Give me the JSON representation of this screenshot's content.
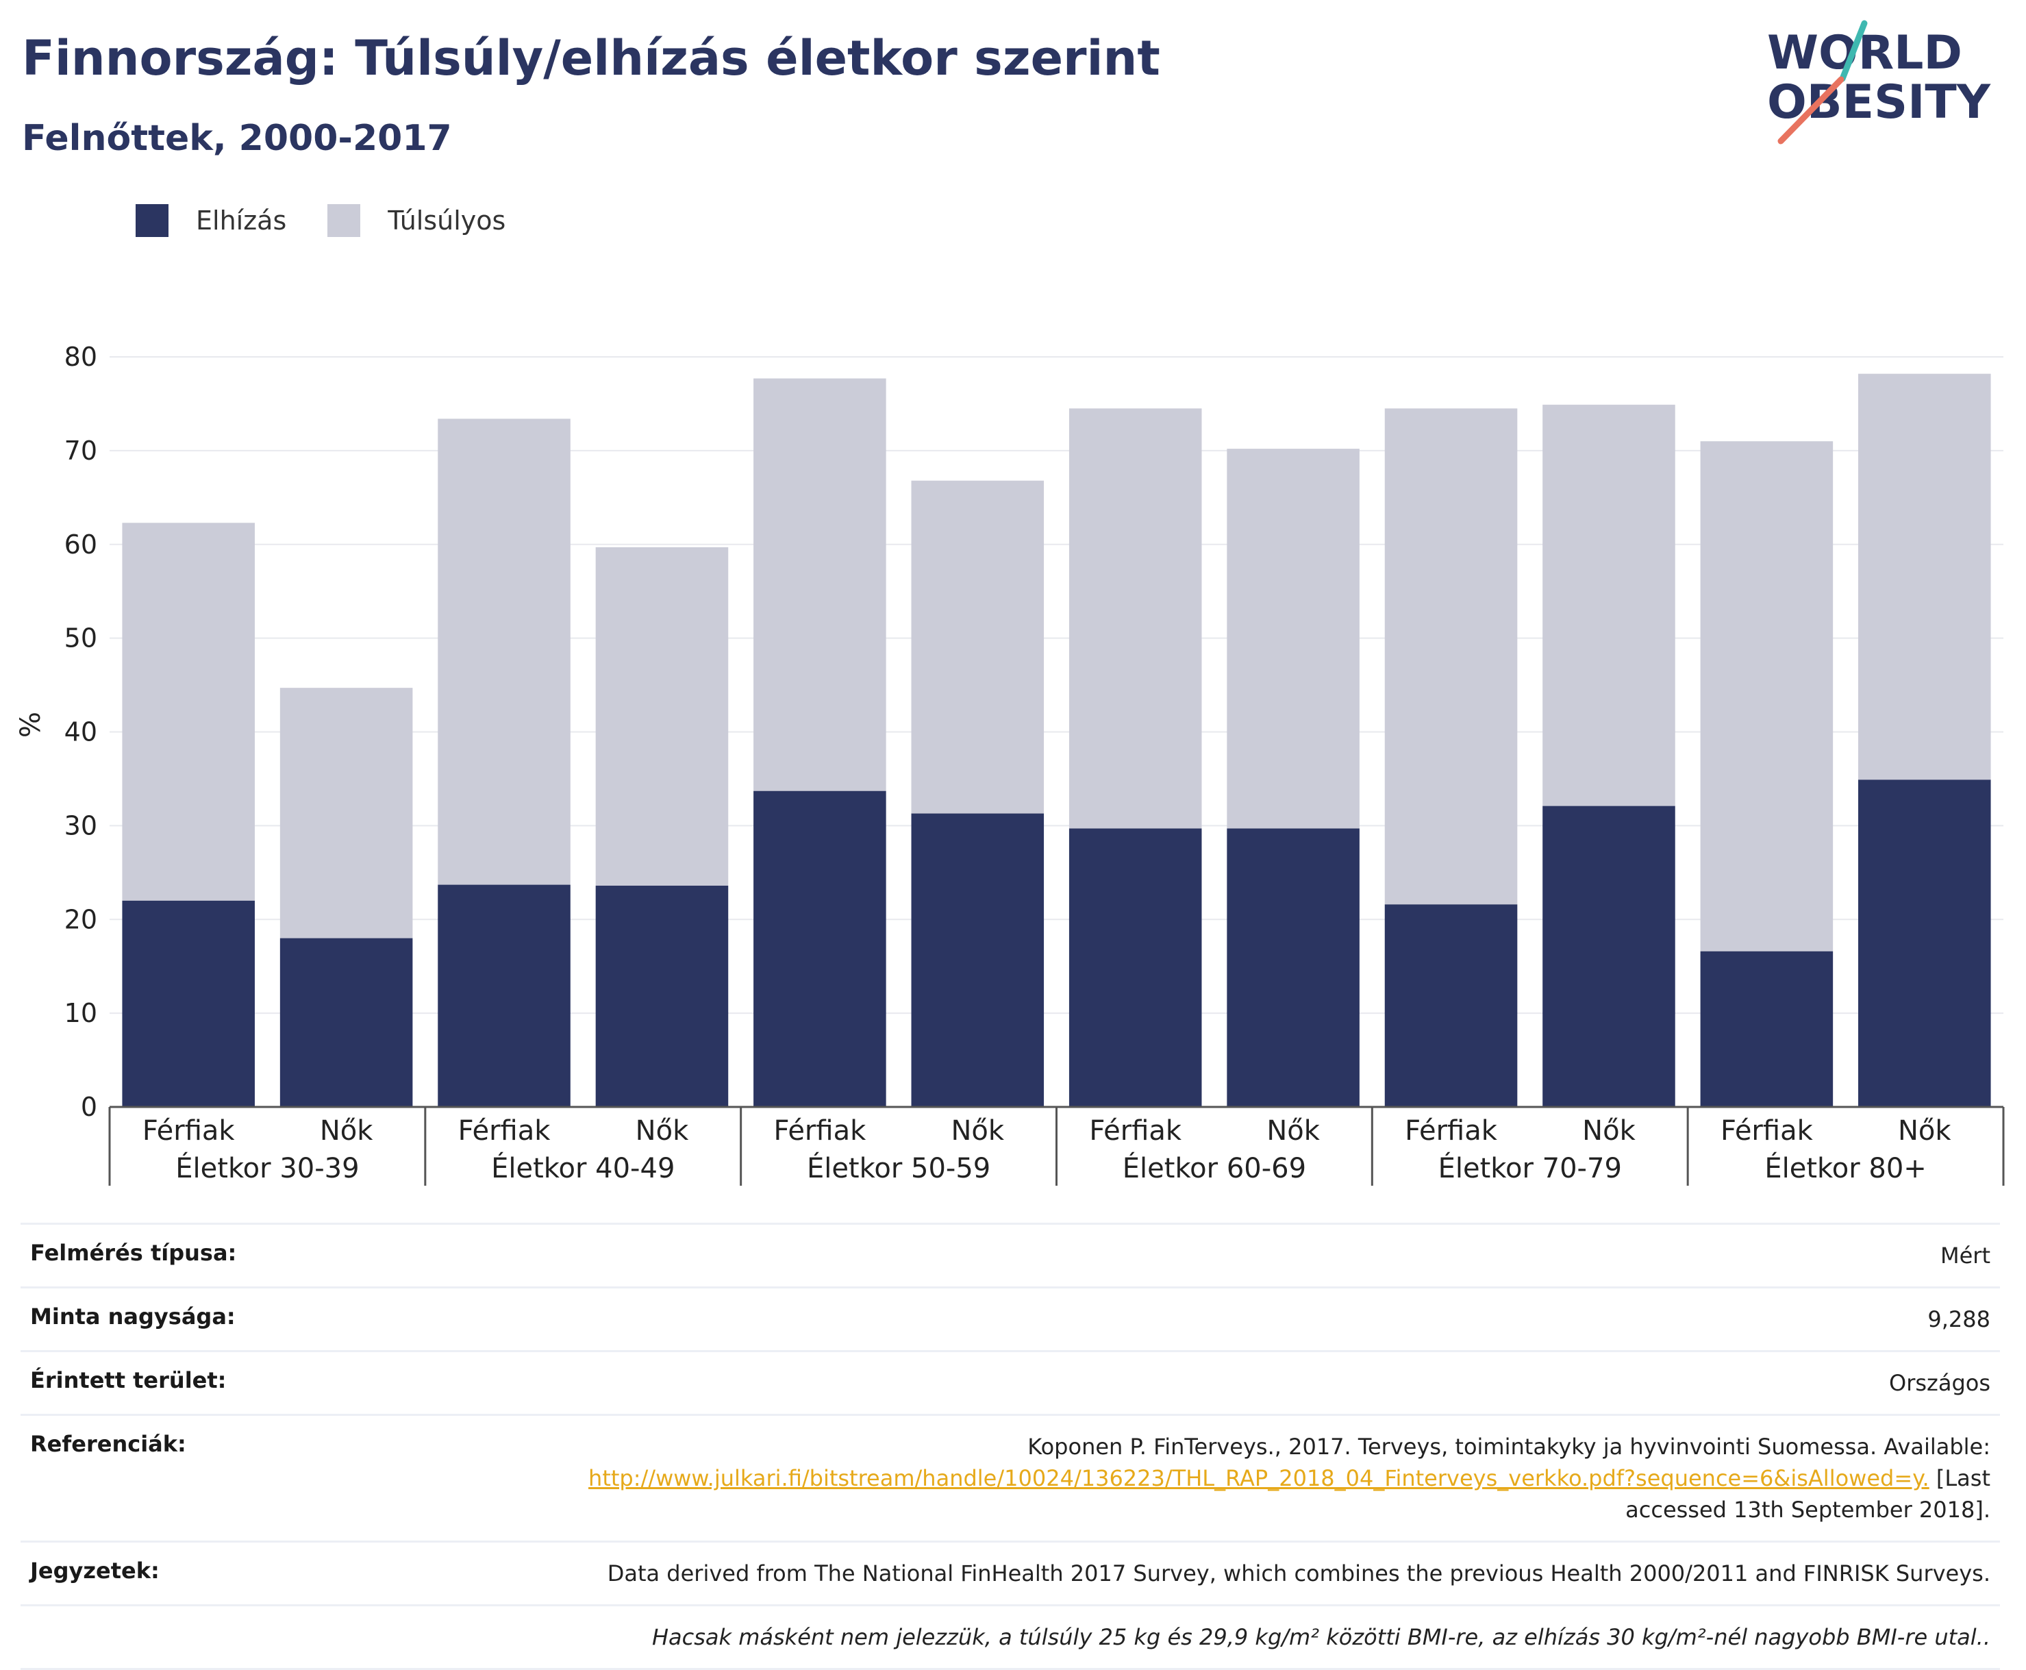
{
  "header": {
    "title": "Finnország: Túlsúly/elhízás életkor szerint",
    "subtitle": "Felnőttek, 2000-2017"
  },
  "logo": {
    "line1": "WORLD",
    "line2": "OBESITY",
    "accent_teal": "#3fb8b0",
    "accent_coral": "#e8735f"
  },
  "colors": {
    "obesity": "#2b3561",
    "overweight": "#cbccd8",
    "brand": "#2b3561"
  },
  "legend": [
    {
      "label": "Elhízás",
      "color": "#2b3561"
    },
    {
      "label": "Túlsúlyos",
      "color": "#cbccd8"
    }
  ],
  "chart_data": {
    "type": "bar",
    "stacked": true,
    "ylabel": "%",
    "ylim": [
      0,
      80
    ],
    "yticks": [
      0,
      10,
      20,
      30,
      40,
      50,
      60,
      70,
      80
    ],
    "grid": true,
    "legend_position": "top-left",
    "groups": [
      "Életkor 30-39",
      "Életkor 40-49",
      "Életkor 50-59",
      "Életkor 60-69",
      "Életkor 70-79",
      "Életkor 80+"
    ],
    "categories": [
      "Férfiak",
      "Nők",
      "Férfiak",
      "Nők",
      "Férfiak",
      "Nők",
      "Férfiak",
      "Nők",
      "Férfiak",
      "Nők",
      "Férfiak",
      "Nők"
    ],
    "series": [
      {
        "name": "Elhízás",
        "values": [
          22,
          18,
          23.7,
          23.6,
          33.7,
          31.3,
          29.7,
          29.7,
          21.6,
          32.1,
          16.6,
          34.9
        ]
      },
      {
        "name": "Túlsúlyos",
        "values": [
          40.3,
          26.7,
          49.7,
          36.1,
          44,
          35.5,
          44.8,
          40.5,
          52.9,
          42.8,
          54.4,
          43.3
        ]
      }
    ]
  },
  "meta": {
    "survey_type": {
      "label": "Felmérés típusa:",
      "value": "Mért"
    },
    "sample_size": {
      "label": "Minta nagysága:",
      "value": "9,288"
    },
    "area": {
      "label": "Érintett terület:",
      "value": "Országos"
    },
    "references": {
      "label": "Referenciák:",
      "text": "Koponen P. FinTerveys., 2017. Terveys, toimintakyky ja hyvinvointi Suomessa. Available:",
      "link": "http://www.julkari.fi/bitstream/handle/10024/136223/THL_RAP_2018_04_Finterveys_verkko.pdf?sequence=6&isAllowed=y.",
      "after_link": " [Last",
      "accessed": "accessed 13th September 2018]."
    },
    "notes": {
      "label": "Jegyzetek:",
      "value": "Data derived from The National FinHealth 2017 Survey, which combines the previous Health 2000/2011 and FINRISK Surveys.",
      "footnote": "Hacsak másként nem jelezzük, a túlsúly 25 kg és 29,9 kg/m² közötti BMI-re, az elhízás 30 kg/m²-nél nagyobb BMI-re utal.."
    }
  }
}
